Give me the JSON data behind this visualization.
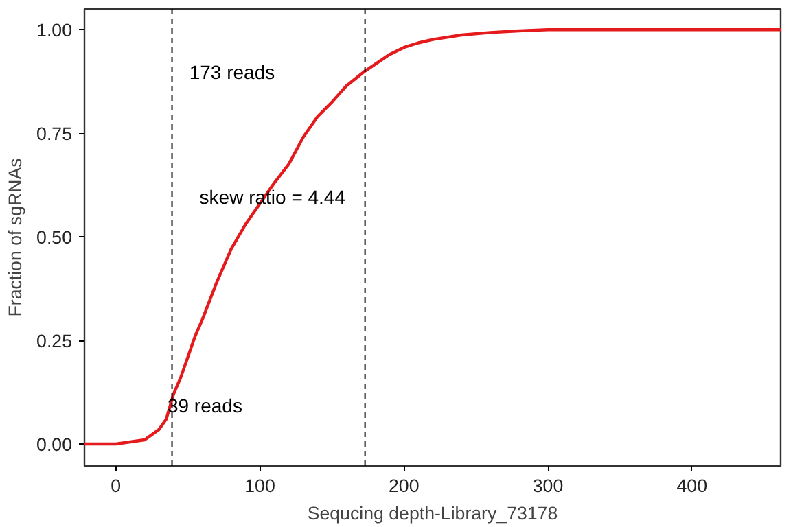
{
  "chart_data": {
    "type": "line",
    "xlabel": "Sequcing depth-Library_73178",
    "ylabel": "Fraction of sgRNAs",
    "x": [
      -21.8,
      0,
      10,
      20,
      30,
      35,
      40,
      45,
      50,
      55,
      60,
      70,
      80,
      90,
      100,
      110,
      120,
      130,
      140,
      150,
      160,
      173,
      190,
      200,
      210,
      220,
      240,
      260,
      280,
      300,
      461.6
    ],
    "series": [
      {
        "color": "#e41a1c",
        "values": [
          0,
          0,
          0.005,
          0.01,
          0.035,
          0.06,
          0.12,
          0.16,
          0.21,
          0.26,
          0.3,
          0.39,
          0.47,
          0.53,
          0.58,
          0.63,
          0.675,
          0.74,
          0.79,
          0.825,
          0.864,
          0.9,
          0.94,
          0.957,
          0.968,
          0.976,
          0.987,
          0.993,
          0.997,
          1.0,
          1.0
        ]
      }
    ],
    "xlim": [
      -21.8,
      461.6
    ],
    "ylim": [
      -0.053,
      1.05
    ],
    "xticks": [
      0,
      100,
      200,
      300,
      400
    ],
    "yticks": [
      {
        "value": 0,
        "label": "0.00"
      },
      {
        "value": 0.25,
        "label": "0.25"
      },
      {
        "value": 0.5,
        "label": "0.50"
      },
      {
        "value": 0.75,
        "label": "0.75"
      },
      {
        "value": 1,
        "label": "1.00"
      }
    ],
    "grid": false,
    "line_style": "solid",
    "ref_lines": [
      {
        "axis": "x",
        "value": 39,
        "color": "#000000",
        "line_style": "dashed"
      },
      {
        "axis": "x",
        "value": 173,
        "color": "#000000",
        "line_style": "dashed"
      }
    ],
    "annotations": [
      "173 reads",
      "39 reads",
      "skew ratio = 4.44"
    ]
  }
}
